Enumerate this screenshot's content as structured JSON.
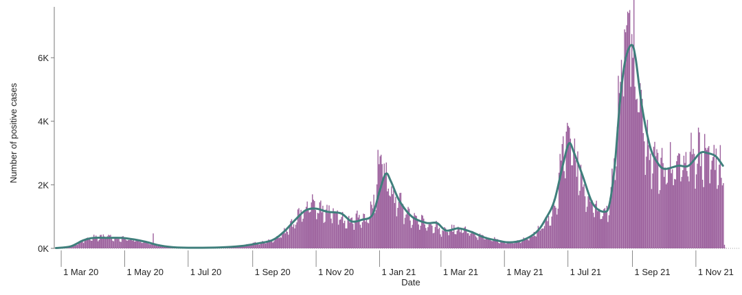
{
  "chart_data": {
    "type": "bar",
    "title": "",
    "xlabel": "Date",
    "ylabel": "Number of positive cases",
    "x_range": [
      "2020-02-24",
      "2021-12-14"
    ],
    "ylim": [
      0,
      7600
    ],
    "y_ticks": [
      {
        "value": 0,
        "label": "0K"
      },
      {
        "value": 2000,
        "label": "2K"
      },
      {
        "value": 4000,
        "label": "4K"
      },
      {
        "value": 6000,
        "label": "6K"
      }
    ],
    "x_ticks": [
      {
        "date": "2020-03-01",
        "label": "1 Mar 20"
      },
      {
        "date": "2020-05-01",
        "label": "1 May 20"
      },
      {
        "date": "2020-07-01",
        "label": "1 Jul 20"
      },
      {
        "date": "2020-09-01",
        "label": "1 Sep 20"
      },
      {
        "date": "2020-11-01",
        "label": "1 Nov 20"
      },
      {
        "date": "2021-01-01",
        "label": "1 Jan 21"
      },
      {
        "date": "2021-03-01",
        "label": "1 Mar 21"
      },
      {
        "date": "2021-05-01",
        "label": "1 May 21"
      },
      {
        "date": "2021-07-01",
        "label": "1 Jul 21"
      },
      {
        "date": "2021-09-01",
        "label": "1 Sep 21"
      },
      {
        "date": "2021-11-01",
        "label": "1 Nov 21"
      }
    ],
    "grid": false,
    "legend": "none",
    "series": [
      {
        "type": "bar",
        "frequency": "daily",
        "color": "#9b5f9c",
        "anchors": [
          [
            "2020-02-25",
            5
          ],
          [
            "2020-03-10",
            60
          ],
          [
            "2020-03-22",
            260
          ],
          [
            "2020-04-01",
            350
          ],
          [
            "2020-04-12",
            380
          ],
          [
            "2020-04-25",
            330
          ],
          [
            "2020-05-06",
            300
          ],
          [
            "2020-05-18",
            200
          ],
          [
            "2020-06-01",
            100
          ],
          [
            "2020-06-15",
            30
          ],
          [
            "2020-07-01",
            15
          ],
          [
            "2020-08-01",
            25
          ],
          [
            "2020-08-20",
            60
          ],
          [
            "2020-09-01",
            150
          ],
          [
            "2020-09-20",
            250
          ],
          [
            "2020-10-01",
            500
          ],
          [
            "2020-10-10",
            850
          ],
          [
            "2020-10-20",
            1200
          ],
          [
            "2020-10-28",
            1450
          ],
          [
            "2020-11-07",
            1250
          ],
          [
            "2020-11-20",
            1100
          ],
          [
            "2020-12-01",
            850
          ],
          [
            "2020-12-10",
            900
          ],
          [
            "2020-12-20",
            1050
          ],
          [
            "2020-12-26",
            1450
          ],
          [
            "2021-01-01",
            2600
          ],
          [
            "2021-01-06",
            2300
          ],
          [
            "2021-01-15",
            1600
          ],
          [
            "2021-01-25",
            1150
          ],
          [
            "2021-02-10",
            850
          ],
          [
            "2021-02-20",
            750
          ],
          [
            "2021-03-01",
            550
          ],
          [
            "2021-03-15",
            650
          ],
          [
            "2021-03-28",
            550
          ],
          [
            "2021-04-10",
            350
          ],
          [
            "2021-04-25",
            250
          ],
          [
            "2021-05-05",
            190
          ],
          [
            "2021-05-18",
            260
          ],
          [
            "2021-06-01",
            520
          ],
          [
            "2021-06-12",
            950
          ],
          [
            "2021-06-20",
            1500
          ],
          [
            "2021-06-25",
            2900
          ],
          [
            "2021-06-30",
            3500
          ],
          [
            "2021-07-05",
            3100
          ],
          [
            "2021-07-15",
            2100
          ],
          [
            "2021-07-25",
            1300
          ],
          [
            "2021-08-05",
            1200
          ],
          [
            "2021-08-10",
            1400
          ],
          [
            "2021-08-14",
            2600
          ],
          [
            "2021-08-18",
            4500
          ],
          [
            "2021-08-23",
            6400
          ],
          [
            "2021-08-29",
            6800
          ],
          [
            "2021-09-02",
            6200
          ],
          [
            "2021-09-08",
            4500
          ],
          [
            "2021-09-15",
            3300
          ],
          [
            "2021-09-22",
            2800
          ],
          [
            "2021-10-01",
            2500
          ],
          [
            "2021-10-15",
            2650
          ],
          [
            "2021-10-25",
            2700
          ],
          [
            "2021-11-05",
            3000
          ],
          [
            "2021-11-15",
            3000
          ],
          [
            "2021-11-25",
            2400
          ],
          [
            "2021-11-27",
            1750
          ],
          [
            "2021-11-28",
            150
          ],
          [
            "2021-11-29",
            20
          ]
        ],
        "spikes": [
          [
            "2020-05-28",
            470
          ],
          [
            "2020-10-28",
            1700
          ],
          [
            "2020-12-30",
            3100
          ],
          [
            "2021-01-01",
            2900
          ],
          [
            "2021-01-03",
            2650
          ],
          [
            "2021-06-30",
            3950
          ],
          [
            "2021-07-01",
            3850
          ],
          [
            "2021-08-27",
            7450
          ],
          [
            "2021-08-29",
            7500
          ],
          [
            "2021-11-03",
            3800
          ],
          [
            "2021-11-09",
            3600
          ]
        ]
      },
      {
        "type": "line",
        "smoothing": "7-day average",
        "color": "#3f7f7c",
        "values": [
          [
            "2020-02-25",
            10
          ],
          [
            "2020-03-10",
            60
          ],
          [
            "2020-03-22",
            250
          ],
          [
            "2020-04-01",
            330
          ],
          [
            "2020-04-15",
            330
          ],
          [
            "2020-04-28",
            330
          ],
          [
            "2020-05-10",
            280
          ],
          [
            "2020-05-22",
            200
          ],
          [
            "2020-06-01",
            110
          ],
          [
            "2020-06-15",
            40
          ],
          [
            "2020-07-01",
            20
          ],
          [
            "2020-08-01",
            30
          ],
          [
            "2020-08-20",
            70
          ],
          [
            "2020-09-05",
            150
          ],
          [
            "2020-09-20",
            260
          ],
          [
            "2020-10-01",
            520
          ],
          [
            "2020-10-12",
            900
          ],
          [
            "2020-10-22",
            1200
          ],
          [
            "2020-11-01",
            1250
          ],
          [
            "2020-11-12",
            1150
          ],
          [
            "2020-11-25",
            1100
          ],
          [
            "2020-12-05",
            850
          ],
          [
            "2020-12-15",
            900
          ],
          [
            "2020-12-25",
            1050
          ],
          [
            "2021-01-01",
            1800
          ],
          [
            "2021-01-07",
            2350
          ],
          [
            "2021-01-12",
            2100
          ],
          [
            "2021-01-20",
            1500
          ],
          [
            "2021-02-01",
            1000
          ],
          [
            "2021-02-15",
            800
          ],
          [
            "2021-02-25",
            800
          ],
          [
            "2021-03-06",
            560
          ],
          [
            "2021-03-18",
            630
          ],
          [
            "2021-03-30",
            520
          ],
          [
            "2021-04-12",
            340
          ],
          [
            "2021-04-25",
            240
          ],
          [
            "2021-05-05",
            190
          ],
          [
            "2021-05-18",
            250
          ],
          [
            "2021-06-01",
            520
          ],
          [
            "2021-06-10",
            950
          ],
          [
            "2021-06-18",
            1500
          ],
          [
            "2021-06-26",
            2600
          ],
          [
            "2021-07-02",
            3300
          ],
          [
            "2021-07-07",
            3000
          ],
          [
            "2021-07-15",
            2300
          ],
          [
            "2021-07-25",
            1400
          ],
          [
            "2021-08-05",
            1150
          ],
          [
            "2021-08-10",
            1400
          ],
          [
            "2021-08-15",
            2600
          ],
          [
            "2021-08-20",
            4600
          ],
          [
            "2021-08-25",
            5900
          ],
          [
            "2021-08-31",
            6400
          ],
          [
            "2021-09-04",
            6000
          ],
          [
            "2021-09-10",
            4500
          ],
          [
            "2021-09-18",
            3200
          ],
          [
            "2021-09-25",
            2700
          ],
          [
            "2021-10-02",
            2500
          ],
          [
            "2021-10-15",
            2600
          ],
          [
            "2021-10-25",
            2600
          ],
          [
            "2021-11-05",
            3000
          ],
          [
            "2021-11-12",
            3000
          ],
          [
            "2021-11-20",
            2900
          ],
          [
            "2021-11-27",
            2600
          ]
        ]
      }
    ]
  }
}
